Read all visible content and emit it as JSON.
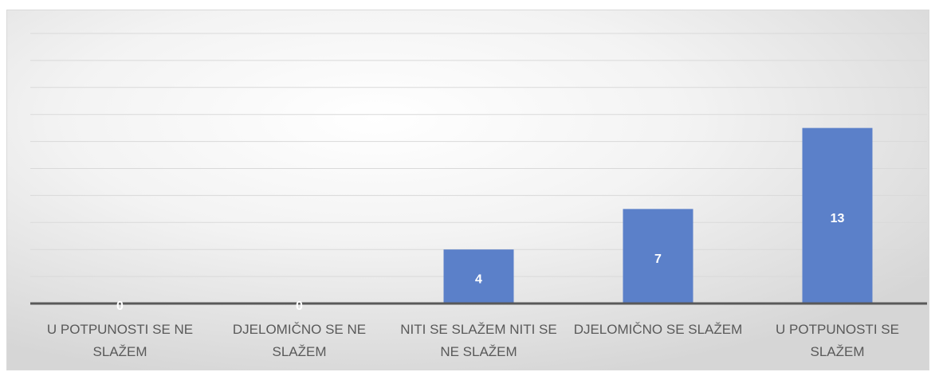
{
  "chart_data": {
    "type": "bar",
    "categories": [
      "U POTPUNOSTI SE NE SLAŽEM",
      "DJELOMIČNO SE NE SLAŽEM",
      "NITI SE SLAŽEM NITI SE NE SLAŽEM",
      "DJELOMIČNO SE SLAŽEM",
      "U POTPUNOSTI SE SLAŽEM"
    ],
    "values": [
      0,
      0,
      4,
      7,
      13
    ],
    "color": "#5b80c9",
    "ylim": [
      0,
      20
    ],
    "yticks": [
      0,
      2,
      4,
      6,
      8,
      10,
      12,
      14,
      16,
      18,
      20
    ],
    "grid": true
  }
}
